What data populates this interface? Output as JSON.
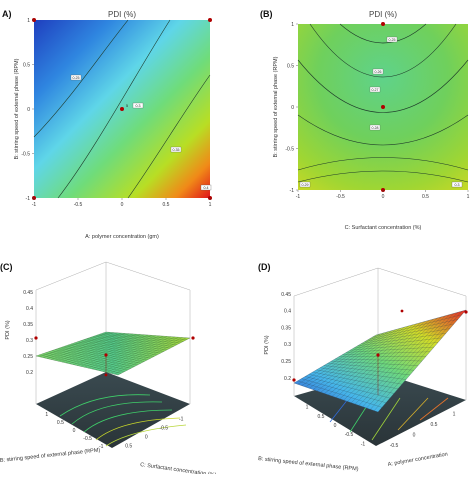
{
  "chart_data": [
    {
      "type": "heatmap",
      "panel_label": "A)",
      "title": "PDI (%)",
      "xlabel": "A: polymer concentration (gm)",
      "ylabel": "B: stirring speed of external phase (RPM)",
      "xticks": [
        "-1",
        "-0.5",
        "0",
        "0.5",
        "1"
      ],
      "yticks": [
        "-1",
        "-0.5",
        "0",
        "0.5",
        "1"
      ],
      "xlim": [
        -1,
        1
      ],
      "ylim": [
        -1,
        1
      ],
      "contour_labels": [
        "0.25",
        "0.3",
        "0.35",
        "0.4"
      ],
      "design_points": [
        [
          -1,
          1
        ],
        [
          1,
          1
        ],
        [
          0,
          0
        ],
        [
          -1,
          -1
        ],
        [
          1,
          -1
        ]
      ],
      "center_label": "5"
    },
    {
      "type": "heatmap",
      "panel_label": "(B)",
      "title": "PDI (%)",
      "xlabel": "C: Surfactant concentration (%)",
      "ylabel": "B: stirring speed of external phase (RPM)",
      "xticks": [
        "-1",
        "-0.5",
        "0",
        "0.5",
        "1"
      ],
      "yticks": [
        "-1",
        "-0.5",
        "0",
        "0.5",
        "1"
      ],
      "xlim": [
        -1,
        1
      ],
      "ylim": [
        -1,
        1
      ],
      "contour_labels": [
        "0.25",
        "0.26",
        "0.27",
        "0.28",
        "0.29",
        "0.3"
      ],
      "design_points": [
        [
          0,
          1
        ],
        [
          0,
          0
        ],
        [
          0,
          -1
        ]
      ]
    },
    {
      "type": "area",
      "panel_label": "(C)",
      "zlabel": "PDI (%)",
      "xlabel": "C: Surfactant concentration (%)",
      "ylabel": "B: stirring speed of external phase (RPM)",
      "zticks": [
        "0.2",
        "0.25",
        "0.3",
        "0.35",
        "0.4",
        "0.45"
      ],
      "xticks": [
        "0.5",
        "0",
        "-0.5",
        "-1"
      ],
      "yticks": [
        "1",
        "0.5",
        "0",
        "-0.5",
        "-1"
      ]
    },
    {
      "type": "area",
      "panel_label": "(D)",
      "zlabel": "PDI (%)",
      "xlabel": "A: polymer concentration",
      "ylabel": "B: stirring speed of external phase (RPM)",
      "zticks": [
        "0.2",
        "0.25",
        "0.3",
        "0.35",
        "0.4",
        "0.45"
      ],
      "xticks": [
        "-0.5",
        "0",
        "0.5",
        "1"
      ],
      "yticks": [
        "1",
        "0.5",
        "0",
        "-0.5",
        "-1"
      ]
    }
  ]
}
